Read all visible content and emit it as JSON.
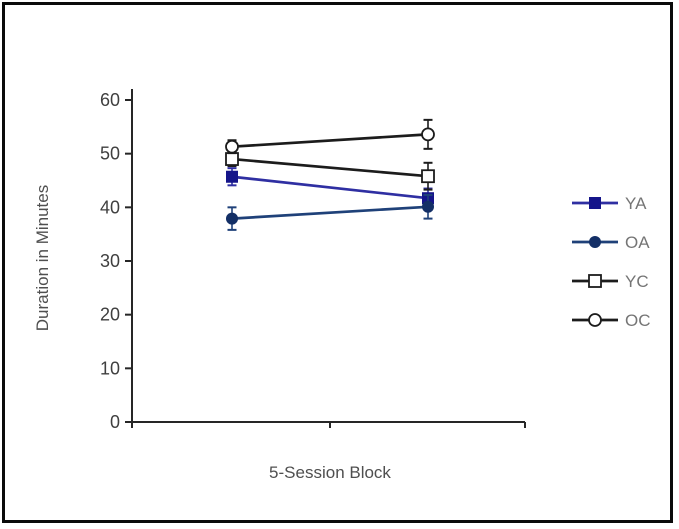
{
  "figure": {
    "background": "#ffffff",
    "border_color": "#0a0a0a"
  },
  "chart_data": {
    "type": "line",
    "title": "",
    "xlabel": "5-Session Block",
    "ylabel": "Duration in Minutes",
    "x": [
      1,
      2
    ],
    "x_tick_labels": [
      "",
      ""
    ],
    "ylim": [
      0,
      60
    ],
    "yticks": [
      0,
      10,
      20,
      30,
      40,
      50,
      60
    ],
    "grid": false,
    "error_bars": true,
    "legend_position": "right",
    "axis_color": "#262626",
    "tick_label_color": "#3f3f3f",
    "axis_title_color": "#4f4f4f",
    "legend_text_color": "#757575",
    "series": [
      {
        "name": "YA",
        "line_color": "#2F2FA2",
        "marker": "filled-square",
        "marker_color": "#15158A",
        "values": [
          45.7,
          41.7
        ],
        "errors": [
          1.6,
          1.8
        ]
      },
      {
        "name": "OA",
        "line_color": "#1F4179",
        "marker": "filled-circle",
        "marker_color": "#132F66",
        "values": [
          37.9,
          40.1
        ],
        "errors": [
          2.1,
          2.2
        ]
      },
      {
        "name": "YC",
        "line_color": "#1c1c1c",
        "marker": "open-square",
        "marker_color": "#ffffff",
        "values": [
          49.0,
          45.8
        ],
        "errors": [
          1.3,
          2.5
        ]
      },
      {
        "name": "OC",
        "line_color": "#1c1c1c",
        "marker": "open-circle",
        "marker_color": "#ffffff",
        "values": [
          51.3,
          53.6
        ],
        "errors": [
          1.2,
          2.7
        ]
      }
    ]
  }
}
